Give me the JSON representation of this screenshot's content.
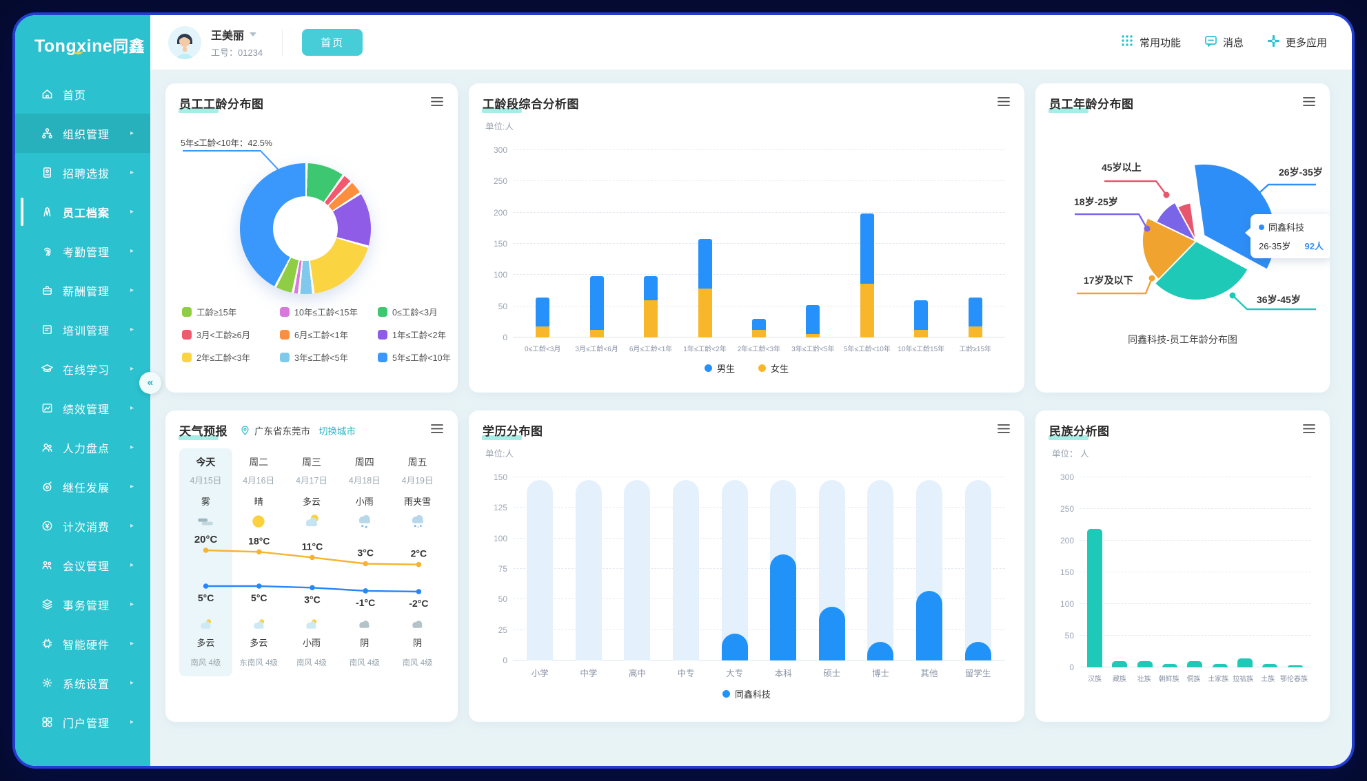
{
  "app": {
    "logo_text": "Tongxine",
    "logo_cn": "同鑫"
  },
  "header": {
    "user_name": "王美丽",
    "user_id": "工号：01234",
    "home_tab": "首页",
    "actions": [
      {
        "icon": "grid-dots",
        "label": "常用功能"
      },
      {
        "icon": "message",
        "label": "消息"
      },
      {
        "icon": "plus",
        "label": "更多应用"
      }
    ]
  },
  "sidebar": {
    "collapse_glyph": "«",
    "items": [
      {
        "icon": "home",
        "label": "首页",
        "arrow": false
      },
      {
        "icon": "org",
        "label": "组织管理",
        "arrow": true,
        "active": true
      },
      {
        "icon": "recruit",
        "label": "招聘选拔",
        "arrow": true
      },
      {
        "icon": "employee-file",
        "label": "员工档案",
        "arrow": true,
        "current": true
      },
      {
        "icon": "attendance",
        "label": "考勤管理",
        "arrow": true
      },
      {
        "icon": "salary",
        "label": "薪酬管理",
        "arrow": true
      },
      {
        "icon": "training",
        "label": "培训管理",
        "arrow": true
      },
      {
        "icon": "online-learning",
        "label": "在线学习",
        "arrow": true
      },
      {
        "icon": "performance",
        "label": "绩效管理",
        "arrow": true
      },
      {
        "icon": "hr-inventory",
        "label": "人力盘点",
        "arrow": true
      },
      {
        "icon": "succession",
        "label": "继任发展",
        "arrow": true
      },
      {
        "icon": "consumption",
        "label": "计次消费",
        "arrow": true
      },
      {
        "icon": "meeting",
        "label": "会议管理",
        "arrow": true
      },
      {
        "icon": "affairs",
        "label": "事务管理",
        "arrow": true
      },
      {
        "icon": "hardware",
        "label": "智能硬件",
        "arrow": true
      },
      {
        "icon": "settings",
        "label": "系统设置",
        "arrow": true
      },
      {
        "icon": "portal",
        "label": "门户管理",
        "arrow": true
      }
    ]
  },
  "chart_data": [
    {
      "type": "donut",
      "title": "员工工龄分布图",
      "callout_label": "5年≤工龄<10年：42.5%",
      "slices": [
        {
          "label": "0≤工龄<3月",
          "color": "#3ec771",
          "value": 9.5
        },
        {
          "label": "3月<工龄≥6月",
          "color": "#f4586f",
          "value": 2.5
        },
        {
          "label": "6月≤工龄<1年",
          "color": "#fb8f3e",
          "value": 3.5
        },
        {
          "label": "1年≤工龄<2年",
          "color": "#8f5ce8",
          "value": 13.5
        },
        {
          "label": "2年≤工龄<3年",
          "color": "#fbd441",
          "value": 18.5
        },
        {
          "label": "3年≤工龄<5年",
          "color": "#7fc9ec",
          "value": 3.5
        },
        {
          "label": "10年≤工龄<15年",
          "color": "#d978dd",
          "value": 1.5
        },
        {
          "label": "工龄≥15年",
          "color": "#8fce44",
          "value": 4.5
        },
        {
          "label": "5年≤工龄<10年",
          "color": "#3a97fc",
          "value": 42.5
        }
      ],
      "legend_order": [
        7,
        6,
        0,
        1,
        2,
        3,
        4,
        5,
        8
      ]
    },
    {
      "type": "stacked-bar",
      "title": "工龄段综合分析图",
      "unit": "单位:人",
      "categories": [
        "0≤工龄<3月",
        "3月≤工龄<6月",
        "6月≤工龄<1年",
        "1年≤工龄<2年",
        "2年≤工龄<3年",
        "3年≤工龄<5年",
        "5年≤工龄<10年",
        "10年≤工龄15年",
        "工龄≥15年"
      ],
      "series": [
        {
          "name": "女生",
          "color": "#f8b62b",
          "values": [
            18,
            12,
            60,
            78,
            12,
            5,
            86,
            12,
            18
          ]
        },
        {
          "name": "男生",
          "color": "#2791fb",
          "values": [
            46,
            86,
            38,
            80,
            18,
            47,
            113,
            48,
            46
          ]
        }
      ],
      "legend": [
        {
          "name": "男生",
          "color": "#2791fb"
        },
        {
          "name": "女生",
          "color": "#f8b62b"
        }
      ],
      "ylim": [
        0,
        300
      ],
      "yticks": [
        0,
        50,
        100,
        150,
        200,
        250,
        300
      ]
    },
    {
      "type": "rose-pie",
      "title": "员工年龄分布图",
      "caption": "同鑫科技-员工年龄分布图",
      "start_angle": -8,
      "slices": [
        {
          "label": "26岁-35岁",
          "color": "#2e8ef8",
          "value": 92,
          "radius": 104,
          "explode": 14
        },
        {
          "label": "36岁-45岁",
          "color": "#1ec9b8",
          "value": 77,
          "radius": 86,
          "explode": 0
        },
        {
          "label": "17岁及以下",
          "color": "#f0a32f",
          "value": 52,
          "radius": 78,
          "explode": 0
        },
        {
          "label": "18岁-25岁",
          "color": "#7a65e8",
          "value": 26,
          "radius": 64,
          "explode": 0
        },
        {
          "label": "45岁以上",
          "color": "#e8566e",
          "value": 15,
          "radius": 56,
          "explode": 0
        }
      ],
      "tooltip": {
        "company": "同鑫科技",
        "range": "26-35岁",
        "count": "92人"
      }
    },
    {
      "type": "bar",
      "title": "学历分布图",
      "unit": "单位:人",
      "categories": [
        "小学",
        "中学",
        "高中",
        "中专",
        "大专",
        "本科",
        "硕士",
        "博士",
        "其他",
        "留学生"
      ],
      "values": [
        0,
        0,
        0,
        0,
        22,
        87,
        44,
        15,
        57,
        15
      ],
      "bg_value": 148,
      "color": "#2193f8",
      "bg_color": "#e4f1fc",
      "yticks": [
        0,
        25,
        50,
        75,
        100,
        125,
        150
      ],
      "legend": [
        {
          "name": "同鑫科技",
          "color": "#2193f8"
        }
      ]
    },
    {
      "type": "bar",
      "title": "民族分析图",
      "unit": "单位： 人",
      "categories": [
        "汉族",
        "藏族",
        "壮族",
        "朝鲜族",
        "侗族",
        "土家族",
        "拉祜族",
        "土族",
        "鄂伦春族"
      ],
      "values": [
        218,
        10,
        10,
        5,
        10,
        5,
        14,
        5,
        2
      ],
      "color": "#1ec9b8",
      "yticks": [
        0,
        50,
        100,
        150,
        200,
        250,
        300
      ]
    },
    {
      "type": "weather",
      "title": "天气预报",
      "location": "广东省东莞市",
      "switch_label": "切换城市",
      "high_color": "#f5b330",
      "low_color": "#2a86f8",
      "temp_unit": "°C",
      "days": [
        {
          "day": "今天",
          "date": "4月15日",
          "condition": "雾",
          "icon": "fog",
          "high": 20,
          "low": 5,
          "night_icon": "night-cloudy",
          "night_condition": "多云",
          "wind": "南风 4级"
        },
        {
          "day": "周二",
          "date": "4月16日",
          "condition": "晴",
          "icon": "sunny",
          "high": 18,
          "low": 5,
          "night_icon": "night-cloudy",
          "night_condition": "多云",
          "wind": "东南风 4级"
        },
        {
          "day": "周三",
          "date": "4月17日",
          "condition": "多云",
          "icon": "partly-cloudy",
          "high": 11,
          "low": 3,
          "night_icon": "night-cloudy",
          "night_condition": "小雨",
          "wind": "南风 4级"
        },
        {
          "day": "周四",
          "date": "4月18日",
          "condition": "小雨",
          "icon": "light-rain",
          "high": 3,
          "low": -1,
          "night_icon": "overcast",
          "night_condition": "阴",
          "wind": "南风 4级"
        },
        {
          "day": "周五",
          "date": "4月19日",
          "condition": "雨夹雪",
          "icon": "sleet",
          "high": 2,
          "low": -2,
          "night_icon": "overcast",
          "night_condition": "阴",
          "wind": "南风 4级"
        }
      ]
    }
  ]
}
